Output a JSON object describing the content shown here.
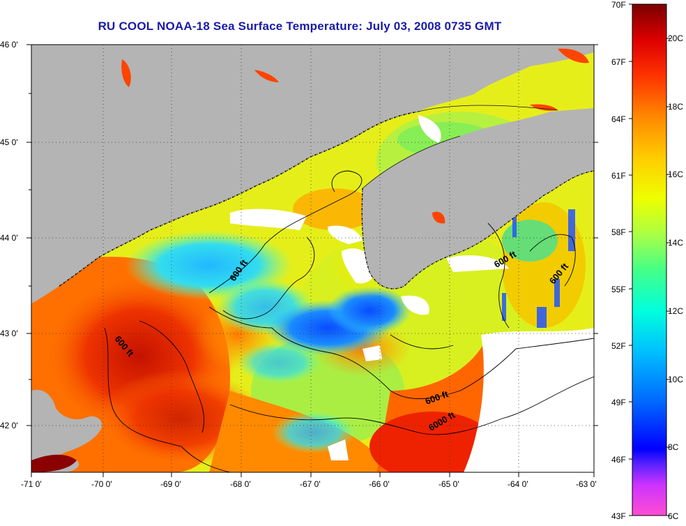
{
  "title": "RU COOL  NOAA-18  Sea Surface Temperature:  July 03, 2008 0735 GMT",
  "map": {
    "lon_ticks": [
      "-71 0'",
      "-70 0'",
      "-69 0'",
      "-68 0'",
      "-67 0'",
      "-66 0'",
      "-65 0'",
      "-64 0'",
      "-63 0'"
    ],
    "lat_ticks": [
      "46 0'",
      "45 0'",
      "44 0'",
      "43 0'",
      "42 0'"
    ],
    "contour_labels": [
      "600 ft",
      "600 ft",
      "600 ft",
      "600 ft",
      "600 ft",
      "6000 ft"
    ],
    "land_color": "#b4b4b4",
    "cloud_color": "#ffffff"
  },
  "colorbar": {
    "fahrenheit_labels": [
      "70F",
      "67F",
      "64F",
      "61F",
      "58F",
      "55F",
      "52F",
      "49F",
      "46F",
      "43F"
    ],
    "celsius_labels": [
      "20C",
      "18C",
      "16C",
      "14C",
      "12C",
      "10C",
      "8C",
      "6C"
    ],
    "colors": [
      "#ff4dd2",
      "#9933ff",
      "#0000ff",
      "#0080ff",
      "#00ccff",
      "#00ffcc",
      "#66ff66",
      "#ccff33",
      "#ffff00",
      "#ffcc00",
      "#ff8c00",
      "#ff4400",
      "#e60000",
      "#8b0000"
    ]
  }
}
